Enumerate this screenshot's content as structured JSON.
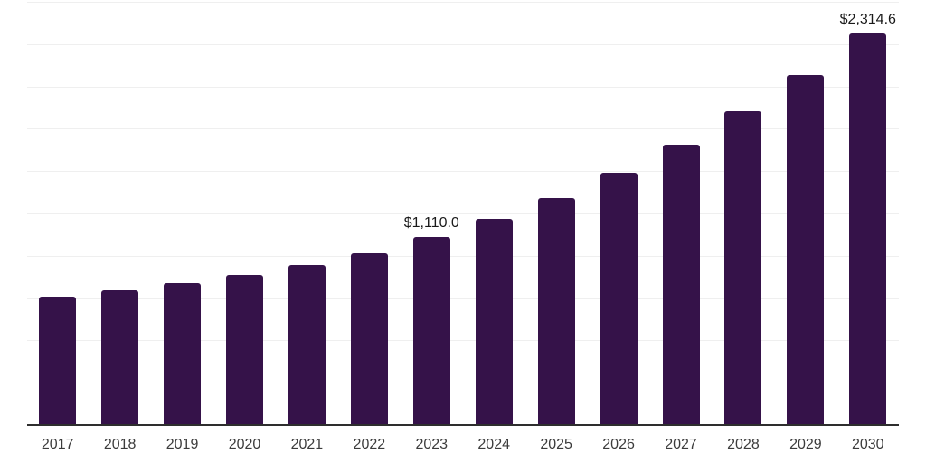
{
  "chart_data": {
    "type": "bar",
    "title": "",
    "xlabel": "",
    "ylabel": "",
    "categories": [
      "2017",
      "2018",
      "2019",
      "2020",
      "2021",
      "2022",
      "2023",
      "2024",
      "2025",
      "2026",
      "2027",
      "2028",
      "2029",
      "2030"
    ],
    "values": [
      760,
      798,
      841,
      888,
      944,
      1016,
      1110.0,
      1216,
      1341,
      1493,
      1658,
      1852,
      2069,
      2314.6
    ],
    "data_labels": {
      "2023": "$1,110.0",
      "2030": "$2,314.6"
    },
    "ylim": [
      0,
      2500
    ],
    "gridline_step": 250,
    "grid": "horizontal",
    "legend": "none",
    "colors": {
      "bar": "#351249",
      "axis_line": "#2e2e2e",
      "gridline": "#efefef",
      "value_label": "#1a1a1a",
      "tick_label": "#3c3c3c",
      "background": "#ffffff"
    }
  }
}
